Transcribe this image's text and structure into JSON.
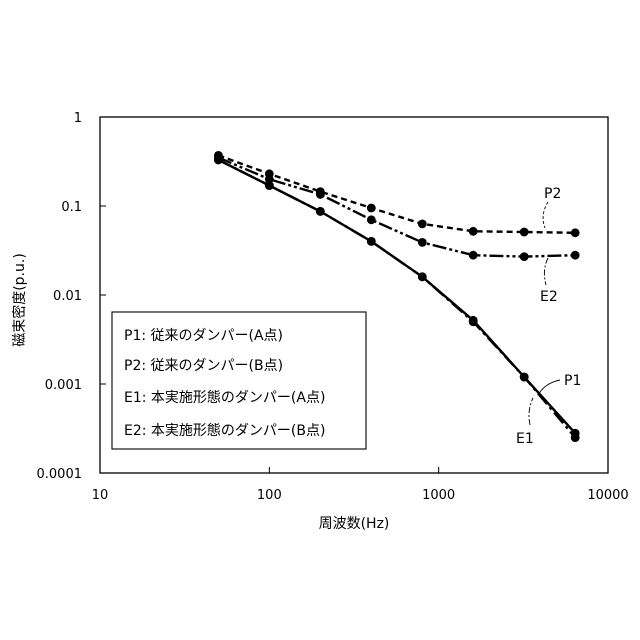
{
  "chart_data": {
    "type": "line",
    "xscale": "log",
    "yscale": "log",
    "xlim": [
      10,
      10000
    ],
    "ylim": [
      0.0001,
      1
    ],
    "xlabel": "周波数(Hz)",
    "ylabel": "磁束密度(p.u.)",
    "x_ticks": [
      "10",
      "100",
      "1000",
      "10000"
    ],
    "y_ticks": [
      "1",
      "0.1",
      "0.01",
      "0.001",
      "0.0001"
    ],
    "grid": false,
    "legend_position": "bottom-left",
    "x": [
      50,
      100,
      200,
      400,
      800,
      1600,
      3200,
      6400
    ],
    "series": [
      {
        "name": "P1: 従来のダンパー(A点)",
        "label": "P1",
        "style": "solid",
        "color": "#000000",
        "values": [
          0.33,
          0.17,
          0.087,
          0.04,
          0.016,
          0.0052,
          0.0012,
          0.00028
        ]
      },
      {
        "name": "P2: 従来のダンパー(B点)",
        "label": "P2",
        "style": "dashed",
        "color": "#000000",
        "values": [
          0.37,
          0.23,
          0.145,
          0.095,
          0.063,
          0.052,
          0.051,
          0.05
        ]
      },
      {
        "name": "E1: 本実施形態のダンパー(A点)",
        "label": "E1",
        "style": "dash-dot",
        "color": "#000000",
        "values": [
          0.33,
          0.17,
          0.087,
          0.04,
          0.016,
          0.005,
          0.0012,
          0.00025
        ]
      },
      {
        "name": "E2: 本実施形態のダンパー(B点)",
        "label": "E2",
        "style": "dash-dot-dot",
        "color": "#000000",
        "values": [
          0.35,
          0.2,
          0.135,
          0.07,
          0.039,
          0.028,
          0.027,
          0.028
        ]
      }
    ]
  }
}
